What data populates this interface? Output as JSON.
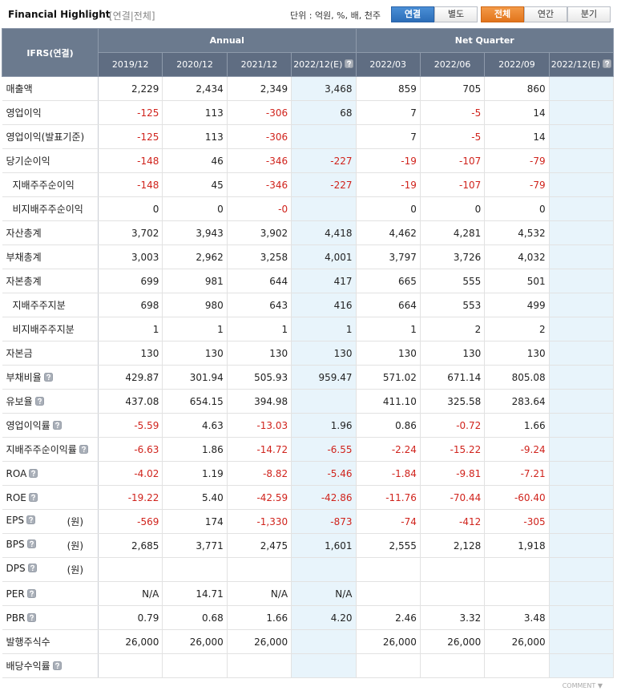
{
  "header": {
    "title": "Financial Highlight",
    "scope": "[연결|전체]",
    "unit": "단위 : 억원, %, 배, 천주",
    "buttons": [
      {
        "label": "연결",
        "active": true
      },
      {
        "label": "별도",
        "active": false
      }
    ],
    "periods": [
      {
        "label": "전체",
        "active": true
      },
      {
        "label": "연간",
        "active": false
      },
      {
        "label": "분기",
        "active": false
      }
    ]
  },
  "table": {
    "corner": "IFRS(연결)",
    "groups": [
      {
        "label": "Annual",
        "span": 4
      },
      {
        "label": "Net Quarter",
        "span": 4
      }
    ],
    "columns": [
      {
        "label": "2019/12",
        "estimate": false,
        "help": false
      },
      {
        "label": "2020/12",
        "estimate": false,
        "help": false
      },
      {
        "label": "2021/12",
        "estimate": false,
        "help": false
      },
      {
        "label": "2022/12(E)",
        "estimate": true,
        "help": true
      },
      {
        "label": "2022/03",
        "estimate": false,
        "help": false
      },
      {
        "label": "2022/06",
        "estimate": false,
        "help": false
      },
      {
        "label": "2022/09",
        "estimate": false,
        "help": false
      },
      {
        "label": "2022/12(E)",
        "estimate": true,
        "help": true
      }
    ],
    "rows": [
      {
        "label": "매출액",
        "indent": false,
        "help": false,
        "cells": [
          "2,229",
          "2,434",
          "2,349",
          "3,468",
          "859",
          "705",
          "860",
          null
        ]
      },
      {
        "label": "영업이익",
        "indent": false,
        "help": false,
        "cells": [
          "-125",
          "113",
          "-306",
          "68",
          "7",
          "-5",
          "14",
          null
        ]
      },
      {
        "label": "영업이익(발표기준)",
        "indent": false,
        "help": false,
        "cells": [
          "-125",
          "113",
          "-306",
          null,
          "7",
          "-5",
          "14",
          null
        ]
      },
      {
        "label": "당기순이익",
        "indent": false,
        "help": false,
        "cells": [
          "-148",
          "46",
          "-346",
          "-227",
          "-19",
          "-107",
          "-79",
          null
        ]
      },
      {
        "label": "지배주주순이익",
        "indent": true,
        "help": false,
        "cells": [
          "-148",
          "45",
          "-346",
          "-227",
          "-19",
          "-107",
          "-79",
          null
        ]
      },
      {
        "label": "비지배주주순이익",
        "indent": true,
        "help": false,
        "cells": [
          "0",
          "0",
          "-0",
          null,
          "0",
          "0",
          "0",
          null
        ]
      },
      {
        "label": "자산총계",
        "indent": false,
        "help": false,
        "cells": [
          "3,702",
          "3,943",
          "3,902",
          "4,418",
          "4,462",
          "4,281",
          "4,532",
          null
        ]
      },
      {
        "label": "부채총계",
        "indent": false,
        "help": false,
        "cells": [
          "3,003",
          "2,962",
          "3,258",
          "4,001",
          "3,797",
          "3,726",
          "4,032",
          null
        ]
      },
      {
        "label": "자본총계",
        "indent": false,
        "help": false,
        "cells": [
          "699",
          "981",
          "644",
          "417",
          "665",
          "555",
          "501",
          null
        ]
      },
      {
        "label": "지배주주지분",
        "indent": true,
        "help": false,
        "cells": [
          "698",
          "980",
          "643",
          "416",
          "664",
          "553",
          "499",
          null
        ]
      },
      {
        "label": "비지배주주지분",
        "indent": true,
        "help": false,
        "cells": [
          "1",
          "1",
          "1",
          "1",
          "1",
          "2",
          "2",
          null
        ]
      },
      {
        "label": "자본금",
        "indent": false,
        "help": false,
        "cells": [
          "130",
          "130",
          "130",
          "130",
          "130",
          "130",
          "130",
          null
        ]
      },
      {
        "label": "부채비율",
        "indent": false,
        "help": true,
        "cells": [
          "429.87",
          "301.94",
          "505.93",
          "959.47",
          "571.02",
          "671.14",
          "805.08",
          null
        ]
      },
      {
        "label": "유보율",
        "indent": false,
        "help": true,
        "cells": [
          "437.08",
          "654.15",
          "394.98",
          null,
          "411.10",
          "325.58",
          "283.64",
          null
        ]
      },
      {
        "label": "영업이익률",
        "indent": false,
        "help": true,
        "cells": [
          "-5.59",
          "4.63",
          "-13.03",
          "1.96",
          "0.86",
          "-0.72",
          "1.66",
          null
        ]
      },
      {
        "label": "지배주주순이익률",
        "indent": false,
        "help": true,
        "cells": [
          "-6.63",
          "1.86",
          "-14.72",
          "-6.55",
          "-2.24",
          "-15.22",
          "-9.24",
          null
        ]
      },
      {
        "label": "ROA",
        "indent": false,
        "help": true,
        "cells": [
          "-4.02",
          "1.19",
          "-8.82",
          "-5.46",
          "-1.84",
          "-9.81",
          "-7.21",
          null
        ]
      },
      {
        "label": "ROE",
        "indent": false,
        "help": true,
        "cells": [
          "-19.22",
          "5.40",
          "-42.59",
          "-42.86",
          "-11.76",
          "-70.44",
          "-60.40",
          null
        ]
      },
      {
        "label": "EPS",
        "indent": false,
        "help": true,
        "unit": "(원)",
        "cells": [
          "-569",
          "174",
          "-1,330",
          "-873",
          "-74",
          "-412",
          "-305",
          null
        ]
      },
      {
        "label": "BPS",
        "indent": false,
        "help": true,
        "unit": "(원)",
        "cells": [
          "2,685",
          "3,771",
          "2,475",
          "1,601",
          "2,555",
          "2,128",
          "1,918",
          null
        ]
      },
      {
        "label": "DPS",
        "indent": false,
        "help": true,
        "unit": "(원)",
        "cells": [
          null,
          null,
          null,
          null,
          null,
          null,
          null,
          null
        ]
      },
      {
        "label": "PER",
        "indent": false,
        "help": true,
        "cells": [
          "N/A",
          "14.71",
          "N/A",
          "N/A",
          null,
          null,
          null,
          null
        ]
      },
      {
        "label": "PBR",
        "indent": false,
        "help": true,
        "cells": [
          "0.79",
          "0.68",
          "1.66",
          "4.20",
          "2.46",
          "3.32",
          "3.48",
          null
        ]
      },
      {
        "label": "발행주식수",
        "indent": false,
        "help": false,
        "cells": [
          "26,000",
          "26,000",
          "26,000",
          null,
          "26,000",
          "26,000",
          "26,000",
          null
        ]
      },
      {
        "label": "배당수익률",
        "indent": false,
        "help": true,
        "cells": [
          null,
          null,
          null,
          null,
          null,
          null,
          null,
          null
        ]
      }
    ]
  },
  "footer": "COMMENT ▼"
}
